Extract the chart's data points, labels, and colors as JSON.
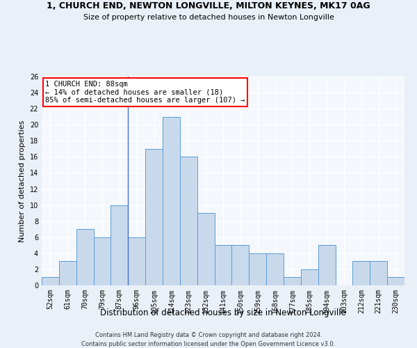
{
  "title1": "1, CHURCH END, NEWTON LONGVILLE, MILTON KEYNES, MK17 0AG",
  "title2": "Size of property relative to detached houses in Newton Longville",
  "xlabel": "Distribution of detached houses by size in Newton Longville",
  "ylabel": "Number of detached properties",
  "bin_labels": [
    "52sqm",
    "61sqm",
    "70sqm",
    "79sqm",
    "87sqm",
    "96sqm",
    "105sqm",
    "114sqm",
    "123sqm",
    "132sqm",
    "141sqm",
    "150sqm",
    "159sqm",
    "168sqm",
    "177sqm",
    "185sqm",
    "194sqm",
    "203sqm",
    "212sqm",
    "221sqm",
    "230sqm"
  ],
  "bar_heights": [
    1,
    3,
    7,
    6,
    10,
    6,
    17,
    21,
    16,
    9,
    5,
    5,
    4,
    4,
    1,
    2,
    5,
    0,
    3,
    3,
    1
  ],
  "bar_color": "#c9d9ec",
  "bar_edge_color": "#5b9bd5",
  "annotation_text": "1 CHURCH END: 88sqm\n← 14% of detached houses are smaller (18)\n85% of semi-detached houses are larger (107) →",
  "annotation_box_color": "white",
  "annotation_box_edgecolor": "red",
  "ylim": [
    0,
    26
  ],
  "yticks": [
    0,
    2,
    4,
    6,
    8,
    10,
    12,
    14,
    16,
    18,
    20,
    22,
    24,
    26
  ],
  "footer1": "Contains HM Land Registry data © Crown copyright and database right 2024.",
  "footer2": "Contains public sector information licensed under the Open Government Licence v3.0.",
  "bg_color": "#eaf0f8",
  "plot_bg_color": "#f4f8fd",
  "grid_color": "#ffffff",
  "title1_fontsize": 9,
  "title2_fontsize": 8,
  "ylabel_fontsize": 8,
  "xlabel_fontsize": 8.5,
  "tick_fontsize": 7,
  "annot_fontsize": 7.5,
  "footer_fontsize": 6
}
